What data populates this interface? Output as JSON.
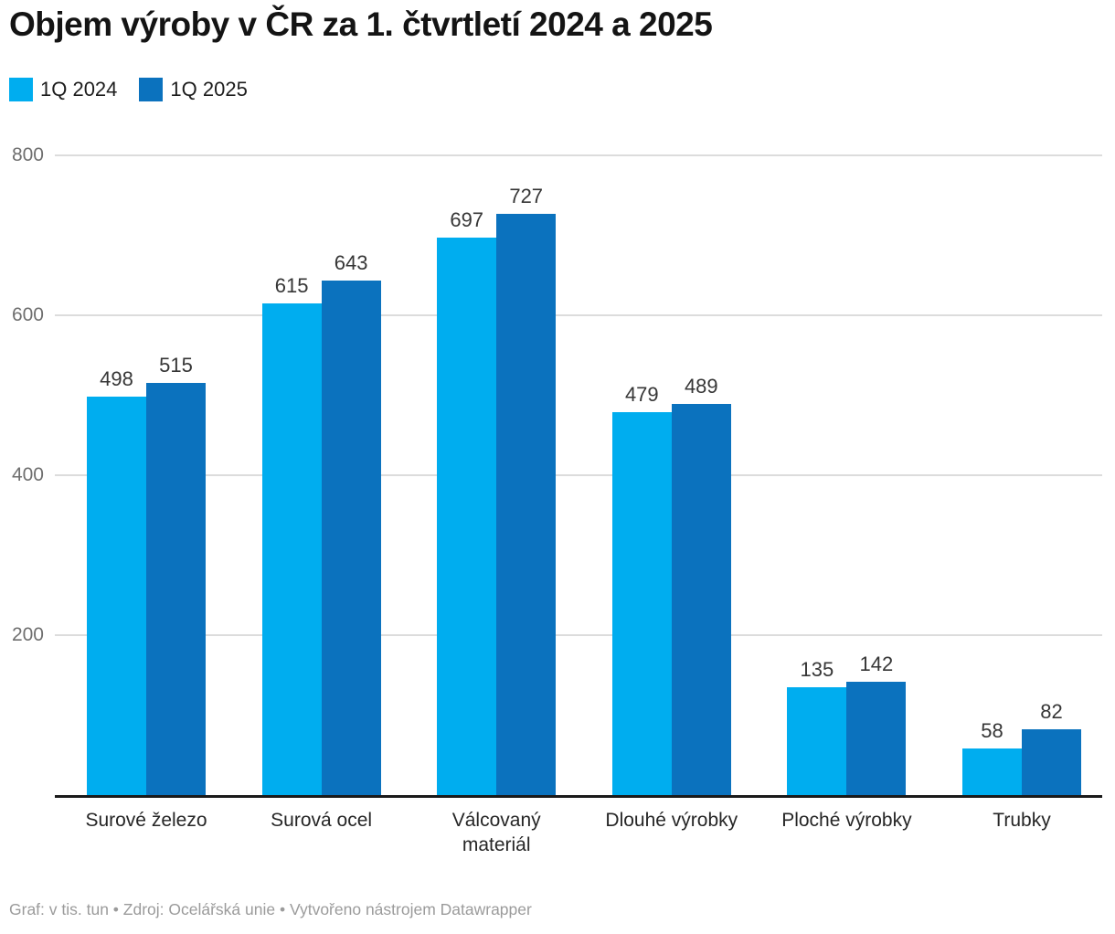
{
  "header": {
    "title": "Objem výroby v ČR za 1. čtvrtletí 2024 a 2025"
  },
  "legend": {
    "items": [
      {
        "label": "1Q 2024",
        "color": "#00ADEF"
      },
      {
        "label": "1Q 2025",
        "color": "#0B72BE"
      }
    ]
  },
  "footer": {
    "text": "Graf: v tis. tun • Zdroj: Ocelářská unie • Vytvořeno nástrojem Datawrapper"
  },
  "chart_data": {
    "type": "bar",
    "title": "Objem výroby v ČR za 1. čtvrtletí 2024 a 2025",
    "unit_note": "v tis. tun",
    "categories": [
      "Surové železo",
      "Surová ocel",
      "Válcovaný materiál",
      "Dlouhé výrobky",
      "Ploché výrobky",
      "Trubky"
    ],
    "series": [
      {
        "name": "1Q 2024",
        "color": "#00ADEF",
        "values": [
          498,
          615,
          697,
          479,
          135,
          58
        ]
      },
      {
        "name": "1Q 2025",
        "color": "#0B72BE",
        "values": [
          515,
          643,
          727,
          489,
          142,
          82
        ]
      }
    ],
    "ylim": [
      0,
      800
    ],
    "yticks": [
      200,
      400,
      600,
      800
    ],
    "grid": true,
    "data_labels": true,
    "legend_position": "top",
    "colors": {
      "grid": "#DCDCDC",
      "axis": "#1A1A1A"
    }
  }
}
